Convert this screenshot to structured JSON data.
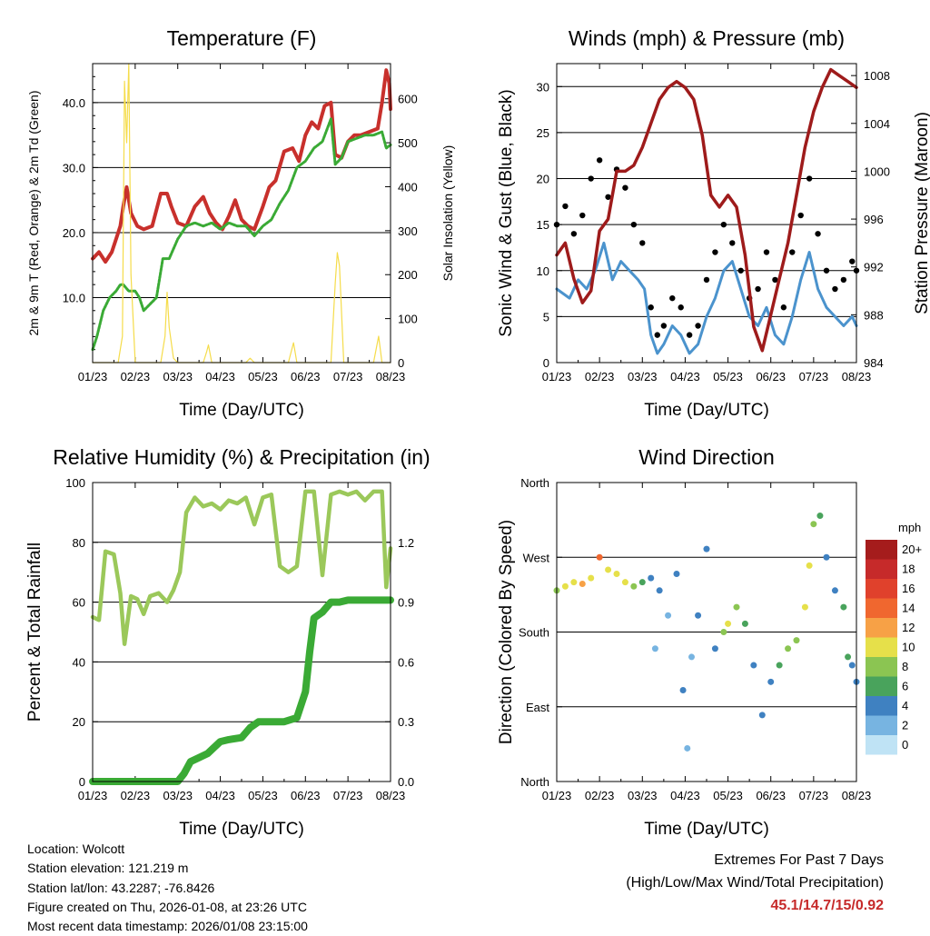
{
  "chart_data": [
    {
      "id": "temp",
      "type": "line",
      "title": "Temperature (F)",
      "xlabel": "Time (Day/UTC)",
      "ylabel": "2m & 9m T (Red, Orange) & 2m Td (Green)",
      "ylabel_right": "Solar Insolation (Yellow)",
      "x_ticks": [
        "01/23",
        "02/23",
        "03/23",
        "04/23",
        "05/23",
        "06/23",
        "07/23",
        "08/23"
      ],
      "xlim": [
        0,
        7
      ],
      "ylim": [
        0,
        46
      ],
      "y_ticks": [
        "10.0",
        "20.0",
        "30.0",
        "40.0"
      ],
      "y2lim": [
        0,
        680
      ],
      "y2_ticks": [
        "0",
        "100",
        "200",
        "300",
        "400",
        "500",
        "600"
      ],
      "series": [
        {
          "name": "2m T",
          "color": "#c8302c",
          "x": [
            0,
            0.15,
            0.3,
            0.45,
            0.55,
            0.65,
            0.72,
            0.8,
            0.9,
            1.05,
            1.2,
            1.4,
            1.6,
            1.75,
            1.85,
            2.0,
            2.2,
            2.4,
            2.6,
            2.75,
            2.9,
            3.05,
            3.2,
            3.35,
            3.5,
            3.65,
            3.8,
            4.0,
            4.15,
            4.3,
            4.5,
            4.7,
            4.85,
            5.0,
            5.15,
            5.3,
            5.45,
            5.6,
            5.7,
            5.85,
            6.0,
            6.15,
            6.3,
            6.5,
            6.7,
            6.8,
            6.9,
            6.97,
            7.0
          ],
          "y": [
            16,
            17,
            15.5,
            17,
            19,
            21,
            24,
            27,
            23,
            21,
            20.5,
            21,
            26,
            26,
            24,
            21.5,
            21,
            24,
            25.5,
            23,
            21.5,
            20.5,
            22.5,
            25,
            22,
            21,
            20.5,
            24,
            27,
            28,
            32.5,
            33,
            31,
            35,
            37,
            36,
            39.5,
            40,
            32,
            31.5,
            34,
            35,
            35,
            35.5,
            36,
            40,
            45,
            43,
            39
          ]
        },
        {
          "name": "2m Td",
          "color": "#3aaa35",
          "x": [
            0,
            0.1,
            0.25,
            0.4,
            0.55,
            0.65,
            0.72,
            0.85,
            1.0,
            1.1,
            1.2,
            1.35,
            1.5,
            1.65,
            1.8,
            2.0,
            2.2,
            2.4,
            2.6,
            2.8,
            3.0,
            3.2,
            3.4,
            3.6,
            3.8,
            4.0,
            4.2,
            4.4,
            4.6,
            4.8,
            5.0,
            5.2,
            5.4,
            5.6,
            5.7,
            5.85,
            6.0,
            6.2,
            6.4,
            6.6,
            6.8,
            6.9,
            7.0
          ],
          "y": [
            2,
            4,
            8,
            10,
            11,
            12,
            12,
            11,
            11,
            10,
            8,
            9,
            10,
            16,
            16,
            19,
            21,
            21.5,
            21,
            21.5,
            20.5,
            21.5,
            21,
            21,
            19.5,
            21,
            22,
            24.5,
            26.5,
            30,
            31,
            33,
            34,
            37.5,
            30.5,
            31.5,
            34,
            34.5,
            35,
            35,
            35.5,
            33,
            33.5
          ]
        },
        {
          "name": "Solar Insolation",
          "color": "#f5dc4a",
          "axis": "right",
          "x": [
            0,
            0.6,
            0.7,
            0.75,
            0.8,
            0.85,
            0.9,
            1.0,
            1.6,
            1.7,
            1.75,
            1.8,
            1.9,
            2.0,
            2.6,
            2.68,
            2.72,
            2.8,
            3.6,
            3.7,
            3.8,
            4.6,
            4.72,
            4.8,
            5.6,
            5.7,
            5.75,
            5.8,
            5.9,
            6.6,
            6.72,
            6.8,
            7.0
          ],
          "y": [
            0,
            0,
            60,
            640,
            500,
            680,
            200,
            0,
            0,
            60,
            160,
            80,
            10,
            0,
            0,
            25,
            40,
            0,
            0,
            10,
            0,
            0,
            45,
            0,
            0,
            180,
            250,
            220,
            0,
            0,
            60,
            0,
            0
          ]
        }
      ]
    },
    {
      "id": "wind",
      "type": "line",
      "title": "Winds (mph) & Pressure (mb)",
      "xlabel": "Time (Day/UTC)",
      "ylabel": "Sonic Wind & Gust (Blue, Black)",
      "ylabel_right": "Station Pressure (Maroon)",
      "x_ticks": [
        "01/23",
        "02/23",
        "03/23",
        "04/23",
        "05/23",
        "06/23",
        "07/23",
        "08/23"
      ],
      "xlim": [
        0,
        7
      ],
      "ylim": [
        0,
        32.5
      ],
      "y_ticks": [
        "0",
        "5",
        "10",
        "15",
        "20",
        "25",
        "30"
      ],
      "y2lim": [
        984,
        1009
      ],
      "y2_ticks": [
        "984",
        "988",
        "992",
        "996",
        "1000",
        "1004",
        "1008"
      ],
      "series": [
        {
          "name": "Sonic Wind",
          "color": "#4b93cd",
          "x": [
            0,
            0.3,
            0.5,
            0.7,
            0.9,
            1.1,
            1.3,
            1.5,
            1.7,
            1.9,
            2.05,
            2.2,
            2.35,
            2.5,
            2.7,
            2.9,
            3.1,
            3.3,
            3.5,
            3.7,
            3.9,
            4.1,
            4.3,
            4.5,
            4.7,
            4.9,
            5.1,
            5.3,
            5.5,
            5.7,
            5.9,
            6.1,
            6.3,
            6.5,
            6.7,
            6.9,
            7.0
          ],
          "y": [
            8,
            7,
            9,
            8,
            10,
            13,
            9,
            11,
            10,
            9,
            8,
            3,
            1,
            2,
            4,
            3,
            1,
            2,
            5,
            7,
            10,
            11,
            8,
            5,
            4,
            6,
            3,
            2,
            5,
            9,
            12,
            8,
            6,
            5,
            4,
            5,
            4
          ]
        },
        {
          "name": "Gust",
          "color": "#000000",
          "marker": "dot",
          "x": [
            0,
            0.2,
            0.4,
            0.6,
            0.8,
            1.0,
            1.2,
            1.4,
            1.6,
            1.8,
            2.0,
            2.2,
            2.35,
            2.5,
            2.7,
            2.9,
            3.1,
            3.3,
            3.5,
            3.7,
            3.9,
            4.1,
            4.3,
            4.5,
            4.7,
            4.9,
            5.1,
            5.3,
            5.5,
            5.7,
            5.9,
            6.1,
            6.3,
            6.5,
            6.7,
            6.9,
            7.0
          ],
          "y": [
            15,
            17,
            14,
            16,
            20,
            22,
            18,
            21,
            19,
            15,
            13,
            6,
            3,
            4,
            7,
            6,
            3,
            4,
            9,
            12,
            15,
            13,
            10,
            7,
            8,
            12,
            9,
            6,
            12,
            16,
            20,
            14,
            10,
            8,
            9,
            11,
            10
          ]
        },
        {
          "name": "Station Pressure",
          "color": "#9e1b1b",
          "axis": "right",
          "x": [
            0,
            0.2,
            0.4,
            0.6,
            0.8,
            1.0,
            1.2,
            1.4,
            1.6,
            1.8,
            2.0,
            2.2,
            2.4,
            2.6,
            2.8,
            3.0,
            3.2,
            3.4,
            3.6,
            3.8,
            4.0,
            4.2,
            4.4,
            4.6,
            4.8,
            5.0,
            5.2,
            5.4,
            5.6,
            5.8,
            6.0,
            6.2,
            6.4,
            6.6,
            6.8,
            7.0
          ],
          "y": [
            993,
            994,
            991,
            989,
            990,
            995,
            996,
            1000,
            1000,
            1000.5,
            1002,
            1004,
            1006,
            1007,
            1007.5,
            1007,
            1006,
            1003,
            998,
            997,
            998,
            997,
            993,
            987,
            985,
            988,
            991,
            994,
            998,
            1002,
            1005,
            1007,
            1008.5,
            1008,
            1007.5,
            1007
          ]
        }
      ]
    },
    {
      "id": "rh",
      "type": "line",
      "title": "Relative Humidity (%) & Precipitation (in)",
      "xlabel": "Time (Day/UTC)",
      "ylabel": "Percent & Total Rainfall",
      "x_ticks": [
        "01/23",
        "02/23",
        "03/23",
        "04/23",
        "05/23",
        "06/23",
        "07/23",
        "08/23"
      ],
      "xlim": [
        0,
        7
      ],
      "ylim": [
        0,
        100
      ],
      "y_ticks": [
        "0",
        "20",
        "40",
        "60",
        "80",
        "100"
      ],
      "y2lim": [
        0,
        1.5
      ],
      "y2_ticks": [
        "0.0",
        "0.3",
        "0.6",
        "0.9",
        "1.2"
      ],
      "series": [
        {
          "name": "Relative Humidity",
          "color": "#9bc85a",
          "x": [
            0,
            0.15,
            0.3,
            0.5,
            0.65,
            0.75,
            0.9,
            1.05,
            1.2,
            1.35,
            1.55,
            1.75,
            1.9,
            2.05,
            2.2,
            2.4,
            2.6,
            2.8,
            3.0,
            3.2,
            3.4,
            3.6,
            3.8,
            4.0,
            4.2,
            4.4,
            4.6,
            4.8,
            5.0,
            5.2,
            5.4,
            5.6,
            5.8,
            6.0,
            6.2,
            6.4,
            6.6,
            6.8,
            6.9,
            7.0
          ],
          "y": [
            55,
            54,
            77,
            76,
            63,
            46,
            62,
            61,
            56,
            62,
            63,
            60,
            64,
            70,
            90,
            95,
            92,
            93,
            91,
            94,
            93,
            95,
            86,
            95,
            96,
            72,
            70,
            72,
            97,
            97,
            69,
            96,
            97,
            96,
            97,
            94,
            97,
            97,
            65,
            78
          ]
        },
        {
          "name": "Total Precipitation",
          "color": "#3aaa35",
          "axis": "right",
          "x": [
            0,
            0.5,
            1.0,
            1.5,
            2.0,
            2.15,
            2.3,
            2.5,
            2.7,
            2.85,
            3.0,
            3.2,
            3.5,
            3.7,
            3.9,
            4.0,
            4.2,
            4.5,
            4.8,
            5.0,
            5.1,
            5.2,
            5.4,
            5.6,
            5.8,
            6.0,
            6.5,
            7.0
          ],
          "y": [
            0,
            0,
            0,
            0,
            0,
            0.04,
            0.1,
            0.12,
            0.14,
            0.17,
            0.2,
            0.21,
            0.22,
            0.27,
            0.3,
            0.3,
            0.3,
            0.3,
            0.32,
            0.45,
            0.65,
            0.82,
            0.85,
            0.9,
            0.9,
            0.91,
            0.91,
            0.91
          ]
        }
      ]
    },
    {
      "id": "dir",
      "type": "scatter",
      "title": "Wind Direction",
      "xlabel": "Time (Day/UTC)",
      "ylabel": "Direction (Colored By Speed)",
      "x_ticks": [
        "01/23",
        "02/23",
        "03/23",
        "04/23",
        "05/23",
        "06/23",
        "07/23",
        "08/23"
      ],
      "xlim": [
        0,
        7
      ],
      "ylim": [
        0,
        360
      ],
      "y_ticks": [
        "North",
        "East",
        "South",
        "West",
        "North"
      ],
      "colorbar_title": "mph",
      "colorbar_labels": [
        "20+",
        "18",
        "16",
        "14",
        "12",
        "10",
        "8",
        "6",
        "4",
        "2",
        "0"
      ],
      "colorbar_colors": [
        "#a51c1c",
        "#c62a2a",
        "#e0412c",
        "#f0672f",
        "#f7a146",
        "#e6e04a",
        "#8bc552",
        "#49a35c",
        "#3f81c1",
        "#77b4e1",
        "#bfe3f5"
      ],
      "x": [
        0,
        0.2,
        0.4,
        0.6,
        0.8,
        1.0,
        1.2,
        1.4,
        1.6,
        1.8,
        2.0,
        2.2,
        2.3,
        2.4,
        2.6,
        2.8,
        2.95,
        3.05,
        3.15,
        3.3,
        3.5,
        3.7,
        3.9,
        4.0,
        4.2,
        4.4,
        4.6,
        4.8,
        5.0,
        5.2,
        5.4,
        5.6,
        5.8,
        5.9,
        6.0,
        6.15,
        6.3,
        6.5,
        6.7,
        6.8,
        6.9,
        7.0
      ],
      "y": [
        230,
        235,
        240,
        238,
        245,
        270,
        255,
        250,
        240,
        235,
        240,
        245,
        160,
        230,
        200,
        250,
        110,
        40,
        150,
        200,
        280,
        160,
        180,
        190,
        210,
        190,
        140,
        80,
        120,
        140,
        160,
        170,
        210,
        260,
        310,
        320,
        270,
        230,
        210,
        150,
        140,
        120
      ],
      "speed": [
        8,
        9,
        10,
        11,
        9,
        13,
        10,
        10,
        9,
        8,
        6,
        4,
        2,
        3,
        2,
        4,
        3,
        2,
        2,
        3,
        3,
        4,
        7,
        10,
        8,
        6,
        4,
        3,
        4,
        6,
        8,
        7,
        10,
        9,
        7,
        5,
        4,
        4,
        6,
        5,
        4,
        4
      ]
    }
  ],
  "info": {
    "location": "Location: Wolcott",
    "elevation": "Station elevation: 121.219 m",
    "latlon": "Station lat/lon: 43.2287; -76.8426",
    "created": "Figure created on Thu, 2026-01-08, at 23:26 UTC",
    "latest": "Most recent data timestamp: 2026/01/08 23:15:00"
  },
  "extremes": {
    "line1": "Extremes For Past 7 Days",
    "line2": "(High/Low/Max Wind/Total Precipitation)",
    "values": "45.1/14.7/15/0.92"
  }
}
